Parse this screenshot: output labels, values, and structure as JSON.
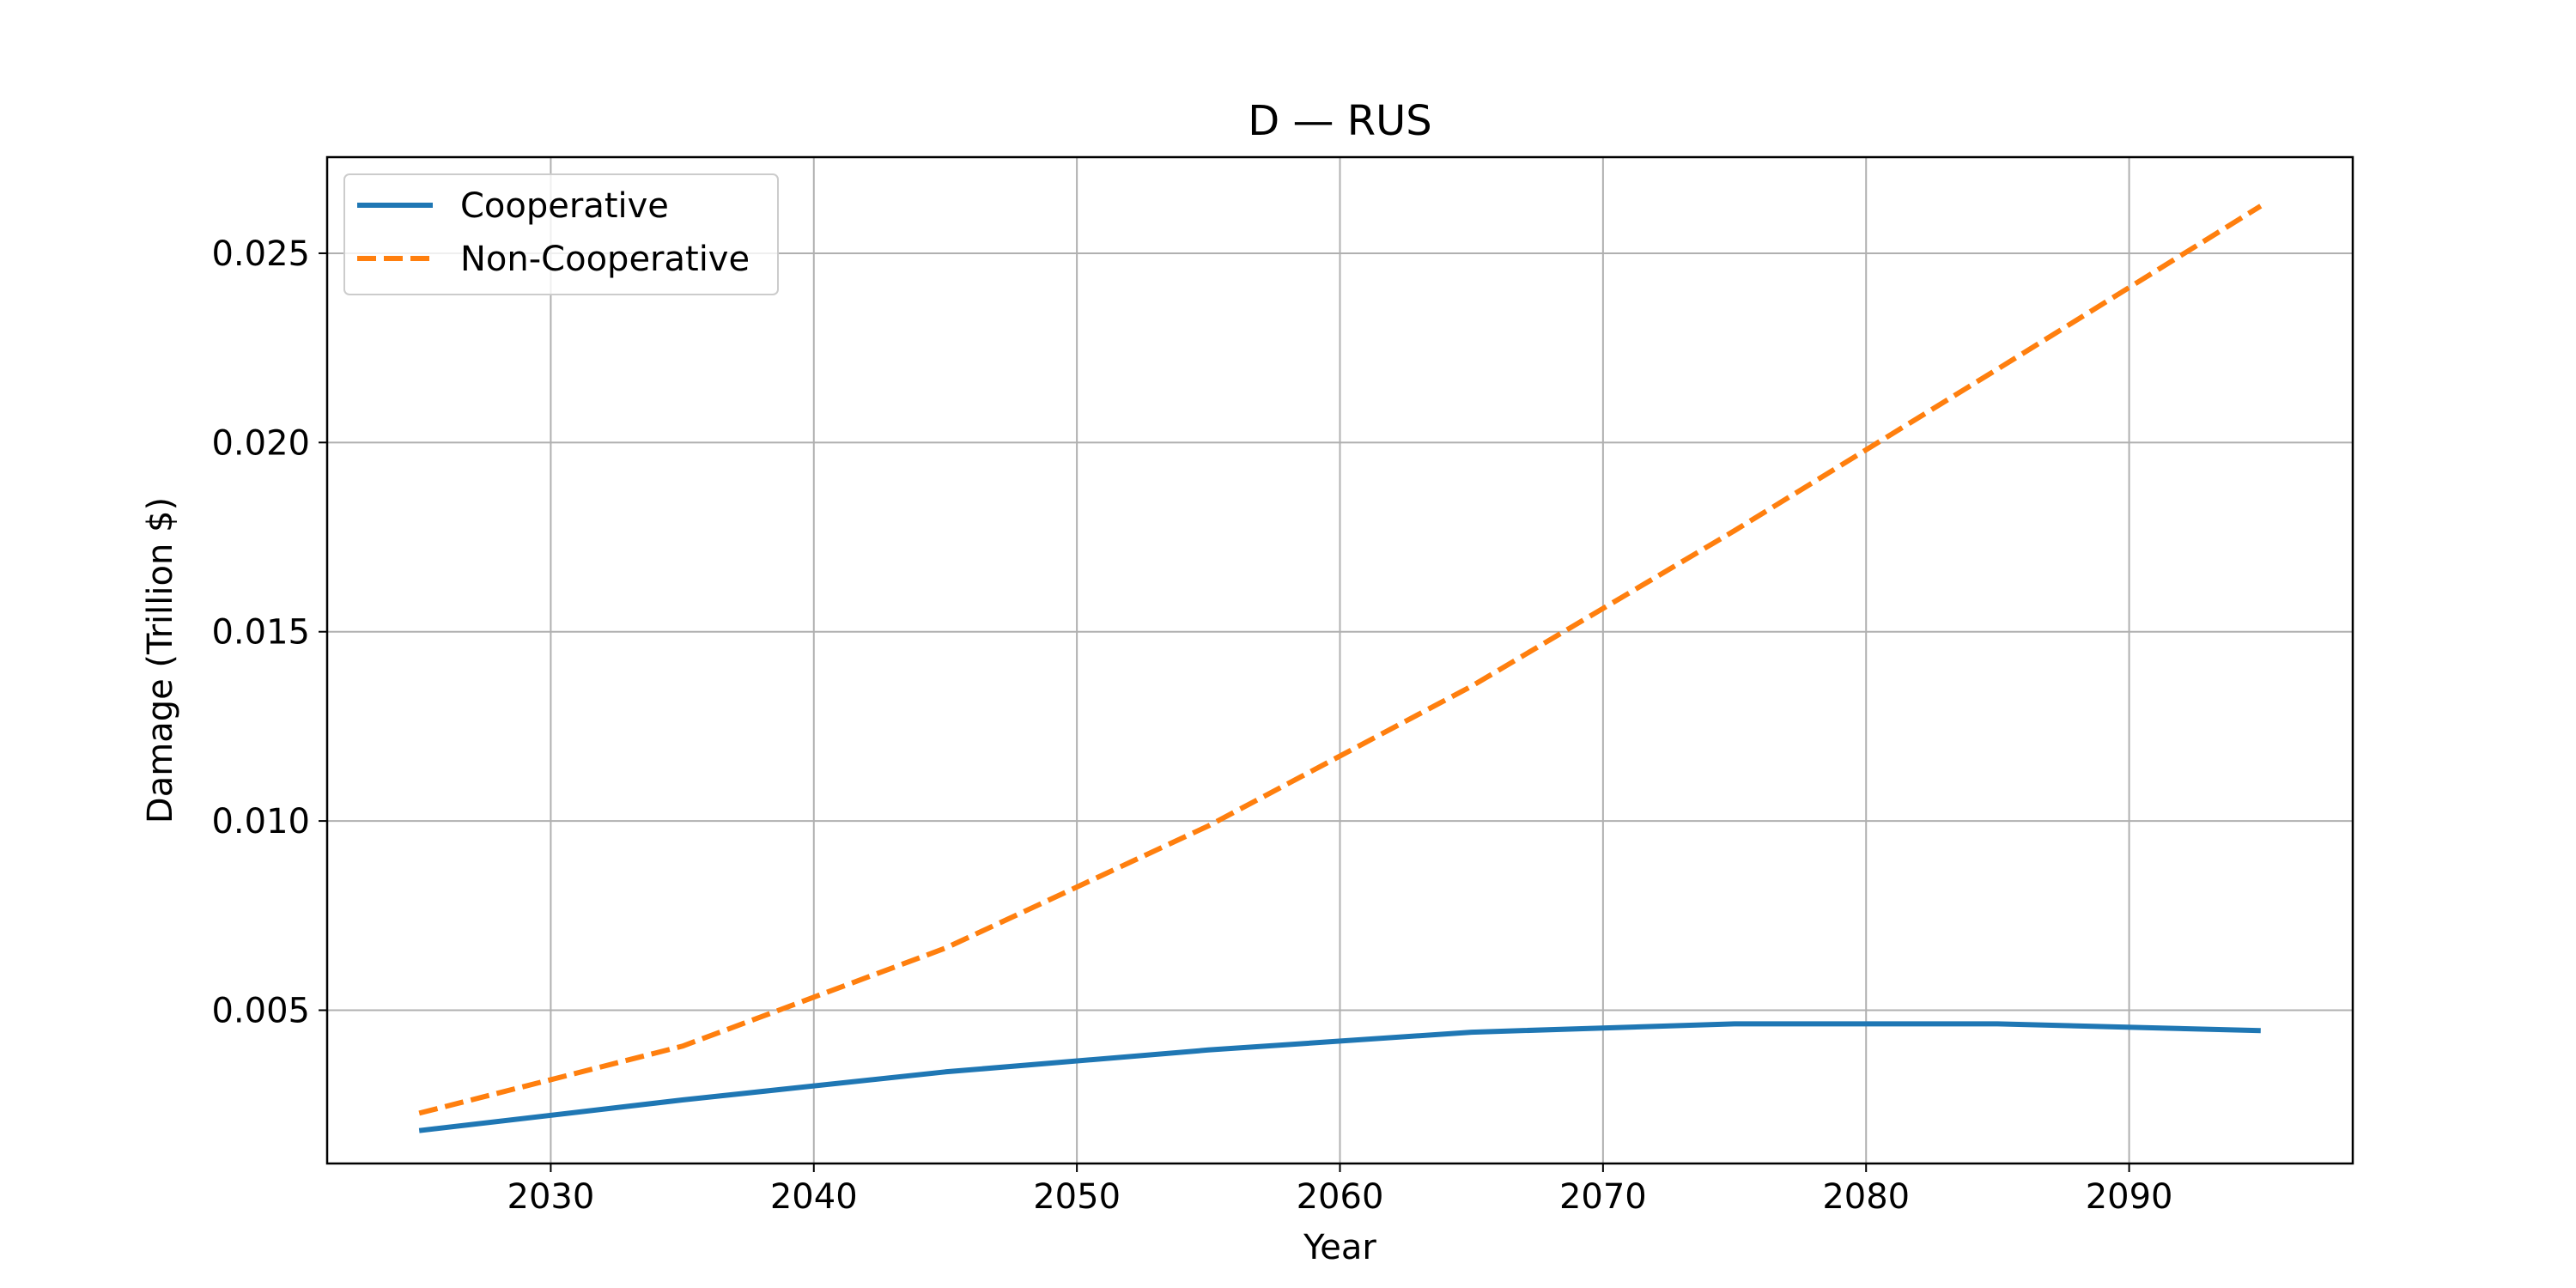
{
  "chart_data": {
    "type": "line",
    "title": "D — RUS",
    "xlabel": "Year",
    "ylabel": "Damage (Trillion $)",
    "xlim": [
      2021.5,
      2098.5
    ],
    "ylim": [
      0.00095,
      0.02754
    ],
    "xticks": [
      2030,
      2040,
      2050,
      2060,
      2070,
      2080,
      2090
    ],
    "xtick_labels": [
      "2030",
      "2040",
      "2050",
      "2060",
      "2070",
      "2080",
      "2090"
    ],
    "yticks": [
      0.005,
      0.01,
      0.015,
      0.02,
      0.025
    ],
    "ytick_labels": [
      "0.005",
      "0.010",
      "0.015",
      "0.020",
      "0.025"
    ],
    "grid": true,
    "legend_position": "upper-left",
    "x": [
      2025,
      2035,
      2045,
      2055,
      2065,
      2075,
      2085,
      2095
    ],
    "series": [
      {
        "name": "Cooperative",
        "color": "#1f77b4",
        "style": "solid",
        "values": [
          0.00182,
          0.00263,
          0.00337,
          0.00395,
          0.00442,
          0.00464,
          0.00464,
          0.00446
        ]
      },
      {
        "name": "Non-Cooperative",
        "color": "#ff7f0e",
        "style": "dashed",
        "values": [
          0.00228,
          0.00405,
          0.00664,
          0.00987,
          0.01356,
          0.01767,
          0.02194,
          0.02625
        ]
      }
    ]
  }
}
